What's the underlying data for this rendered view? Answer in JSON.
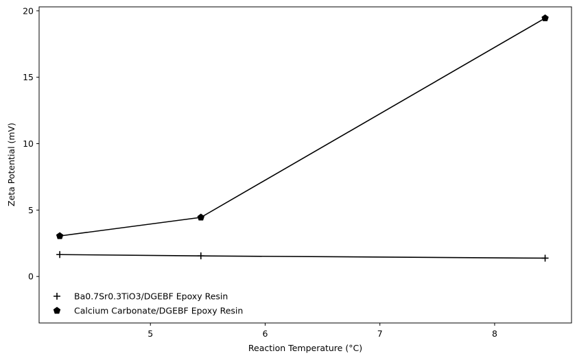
{
  "chart_data": {
    "type": "line",
    "xlabel": "Reaction Temperature (°C)",
    "ylabel": "Zeta Potential (mV)",
    "xlim": [
      4.03,
      8.67
    ],
    "ylim": [
      -3.5,
      20.3
    ],
    "xticks": [
      5,
      6,
      7,
      8
    ],
    "yticks": [
      0,
      5,
      10,
      15,
      20
    ],
    "grid": false,
    "legend_position": "lower-left",
    "series": [
      {
        "name": "Ba0.7Sr0.3TiO3/DGEBF Epoxy Resin",
        "marker": "plus",
        "color": "#000000",
        "x": [
          4.21,
          5.44,
          8.44
        ],
        "y": [
          1.65,
          1.55,
          1.38
        ]
      },
      {
        "name": "Calcium Carbonate/DGEBF Epoxy Resin",
        "marker": "pentagon",
        "color": "#000000",
        "x": [
          4.21,
          5.44,
          8.44
        ],
        "y": [
          3.05,
          4.45,
          19.45
        ]
      }
    ]
  }
}
